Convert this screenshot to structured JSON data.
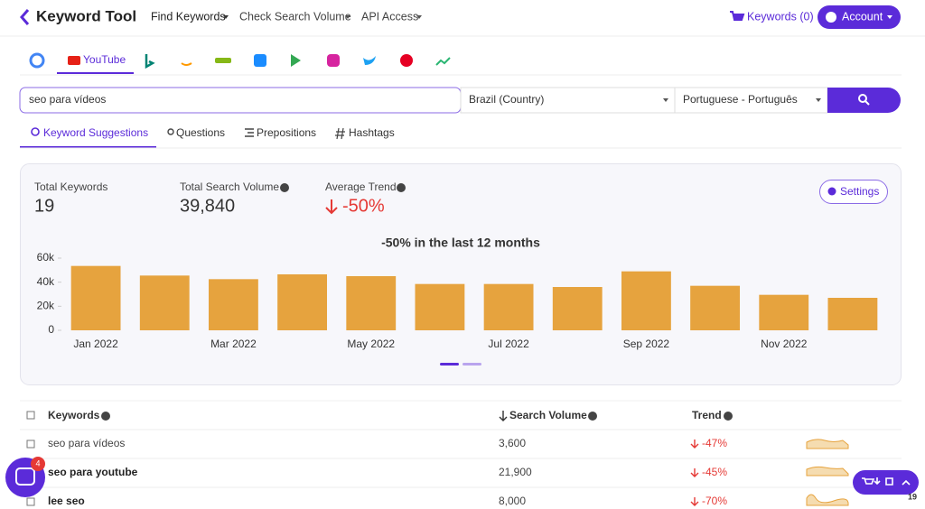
{
  "nav": {
    "brand": "Keyword Tool",
    "menu": [
      "Find Keywords",
      "Check Search Volume",
      "API Access"
    ],
    "cart": "Keywords (0)",
    "account": "Account"
  },
  "platform_tabs": {
    "active": "YouTube"
  },
  "search": {
    "query": "seo para vídeos",
    "country": "Brazil (Country)",
    "language": "Portuguese - Português"
  },
  "result_tabs": [
    "Keyword Suggestions",
    "Questions",
    "Prepositions",
    "Hashtags"
  ],
  "stats": [
    {
      "label": "Total Keywords",
      "value": "19"
    },
    {
      "label": "Total Search Volume",
      "value": "39,840"
    },
    {
      "label": "Average Trend",
      "value": "-50%"
    }
  ],
  "settings": "Settings",
  "chart_data": {
    "type": "bar",
    "title": "-50% in the last 12 months",
    "categories": [
      "Jan 2022",
      null,
      "Mar 2022",
      null,
      "May 2022",
      null,
      "Jul 2022",
      null,
      "Sep 2022",
      null,
      "Nov 2022",
      null
    ],
    "values": [
      53500,
      45500,
      42500,
      46500,
      45000,
      38500,
      38500,
      36000,
      49000,
      37000,
      29500,
      27000
    ],
    "color": "#e6a33e",
    "ylim": [
      0,
      60000
    ],
    "yticks": [
      0,
      {
        "value": 20000,
        "label": "20k"
      },
      {
        "value": 40000,
        "label": "40k"
      },
      {
        "value": 60000,
        "label": "60k"
      }
    ],
    "grid": false
  },
  "table": {
    "header": [
      "Keywords",
      "Search Volume",
      "Trend"
    ],
    "rows": [
      [
        "seo para vídeos",
        "3,600",
        "-47%"
      ],
      [
        "seo para youtube",
        "21,900",
        "-45%"
      ],
      [
        "lee seo",
        "8,000",
        "-70%"
      ]
    ]
  },
  "chat_badge": "4",
  "export_badge": "19"
}
